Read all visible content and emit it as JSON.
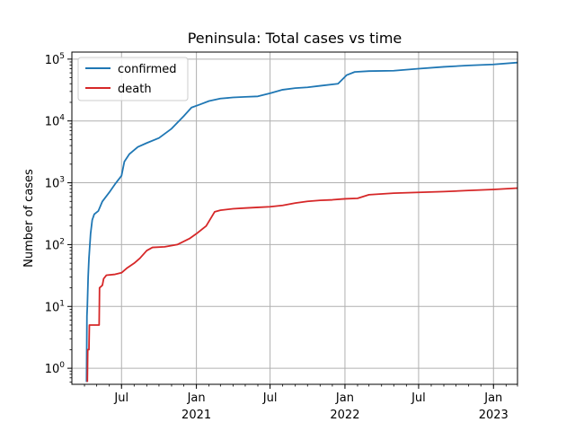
{
  "chart_data": {
    "type": "line",
    "title": "Peninsula: Total cases vs time",
    "xlabel": "",
    "ylabel": "Number of cases",
    "yscale": "log",
    "ylim": [
      0.55,
      130000
    ],
    "xlim": [
      "2020-03-01",
      "2023-03-01"
    ],
    "grid": true,
    "legend_position": "upper-left",
    "x_major_ticks": [
      {
        "date": "2020-07-01",
        "label": "Jul",
        "year": ""
      },
      {
        "date": "2021-01-01",
        "label": "Jan",
        "year": "2021"
      },
      {
        "date": "2021-07-01",
        "label": "Jul",
        "year": ""
      },
      {
        "date": "2022-01-01",
        "label": "Jan",
        "year": "2022"
      },
      {
        "date": "2022-07-01",
        "label": "Jul",
        "year": ""
      },
      {
        "date": "2023-01-01",
        "label": "Jan",
        "year": "2023"
      }
    ],
    "y_major_ticks": [
      {
        "value": 1,
        "label": "10",
        "exp": "0"
      },
      {
        "value": 10,
        "label": "10",
        "exp": "1"
      },
      {
        "value": 100,
        "label": "10",
        "exp": "2"
      },
      {
        "value": 1000,
        "label": "10",
        "exp": "3"
      },
      {
        "value": 10000,
        "label": "10",
        "exp": "4"
      },
      {
        "value": 100000,
        "label": "10",
        "exp": "5"
      }
    ],
    "series": [
      {
        "name": "confirmed",
        "color": "#1f77b4",
        "points": [
          [
            "2020-04-06",
            0.6
          ],
          [
            "2020-04-07",
            7
          ],
          [
            "2020-04-08",
            10
          ],
          [
            "2020-04-10",
            30
          ],
          [
            "2020-04-12",
            60
          ],
          [
            "2020-04-16",
            150
          ],
          [
            "2020-04-20",
            250
          ],
          [
            "2020-04-25",
            310
          ],
          [
            "2020-05-05",
            350
          ],
          [
            "2020-05-15",
            500
          ],
          [
            "2020-06-01",
            700
          ],
          [
            "2020-06-15",
            950
          ],
          [
            "2020-07-01",
            1300
          ],
          [
            "2020-07-08",
            2200
          ],
          [
            "2020-07-20",
            2900
          ],
          [
            "2020-08-10",
            3800
          ],
          [
            "2020-09-01",
            4400
          ],
          [
            "2020-10-01",
            5300
          ],
          [
            "2020-11-01",
            7500
          ],
          [
            "2020-12-01",
            12000
          ],
          [
            "2020-12-20",
            16500
          ],
          [
            "2021-01-10",
            18500
          ],
          [
            "2021-02-01",
            21000
          ],
          [
            "2021-03-01",
            23000
          ],
          [
            "2021-04-01",
            24000
          ],
          [
            "2021-05-01",
            24500
          ],
          [
            "2021-06-01",
            25000
          ],
          [
            "2021-07-01",
            28000
          ],
          [
            "2021-08-01",
            32000
          ],
          [
            "2021-09-01",
            34000
          ],
          [
            "2021-10-01",
            35000
          ],
          [
            "2021-11-01",
            37000
          ],
          [
            "2021-12-15",
            40000
          ],
          [
            "2022-01-05",
            55000
          ],
          [
            "2022-01-25",
            62000
          ],
          [
            "2022-03-01",
            64000
          ],
          [
            "2022-05-01",
            65000
          ],
          [
            "2022-07-01",
            70000
          ],
          [
            "2022-09-01",
            75000
          ],
          [
            "2022-11-01",
            79000
          ],
          [
            "2023-01-01",
            82000
          ],
          [
            "2023-03-01",
            88000
          ]
        ]
      },
      {
        "name": "death",
        "color": "#d62728",
        "points": [
          [
            "2020-04-08",
            0.6
          ],
          [
            "2020-04-09",
            2
          ],
          [
            "2020-04-12",
            2
          ],
          [
            "2020-04-13",
            5
          ],
          [
            "2020-05-07",
            5
          ],
          [
            "2020-05-08",
            20
          ],
          [
            "2020-05-15",
            22
          ],
          [
            "2020-05-18",
            28
          ],
          [
            "2020-05-25",
            32
          ],
          [
            "2020-06-15",
            33
          ],
          [
            "2020-07-01",
            35
          ],
          [
            "2020-07-15",
            42
          ],
          [
            "2020-08-01",
            50
          ],
          [
            "2020-08-15",
            60
          ],
          [
            "2020-09-01",
            80
          ],
          [
            "2020-09-15",
            90
          ],
          [
            "2020-10-15",
            92
          ],
          [
            "2020-11-15",
            100
          ],
          [
            "2020-12-15",
            125
          ],
          [
            "2021-01-01",
            150
          ],
          [
            "2021-01-25",
            200
          ],
          [
            "2021-02-15",
            340
          ],
          [
            "2021-03-01",
            360
          ],
          [
            "2021-04-01",
            380
          ],
          [
            "2021-05-01",
            390
          ],
          [
            "2021-06-01",
            400
          ],
          [
            "2021-07-01",
            410
          ],
          [
            "2021-08-01",
            430
          ],
          [
            "2021-09-01",
            470
          ],
          [
            "2021-10-01",
            500
          ],
          [
            "2021-11-01",
            520
          ],
          [
            "2021-12-01",
            530
          ],
          [
            "2022-01-01",
            550
          ],
          [
            "2022-02-01",
            560
          ],
          [
            "2022-03-01",
            640
          ],
          [
            "2022-05-01",
            680
          ],
          [
            "2022-07-01",
            700
          ],
          [
            "2022-09-01",
            720
          ],
          [
            "2022-11-01",
            750
          ],
          [
            "2023-01-01",
            780
          ],
          [
            "2023-03-01",
            820
          ]
        ]
      }
    ]
  }
}
